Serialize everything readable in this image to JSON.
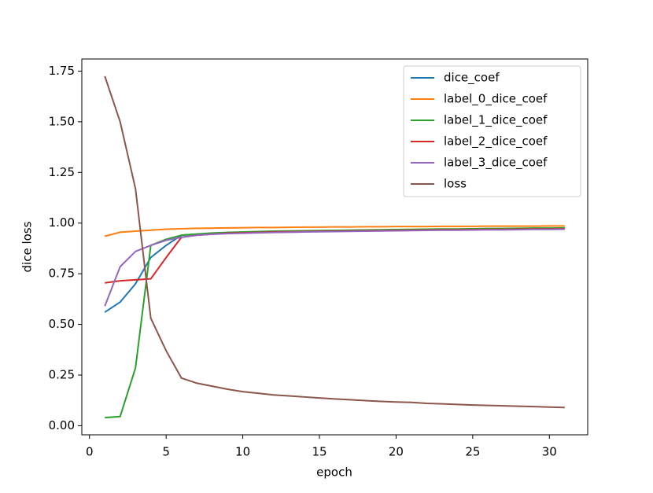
{
  "chart_data": {
    "type": "line",
    "xlabel": "epoch",
    "ylabel": "dice loss",
    "x": [
      1,
      2,
      3,
      4,
      5,
      6,
      7,
      8,
      9,
      10,
      11,
      12,
      13,
      14,
      15,
      16,
      17,
      18,
      19,
      20,
      21,
      22,
      23,
      24,
      25,
      26,
      27,
      28,
      29,
      30,
      31
    ],
    "series": [
      {
        "name": "dice_coef",
        "color": "#1f77b4",
        "values": [
          0.56,
          0.61,
          0.7,
          0.83,
          0.89,
          0.94,
          0.945,
          0.95,
          0.953,
          0.955,
          0.957,
          0.959,
          0.96,
          0.961,
          0.962,
          0.963,
          0.964,
          0.965,
          0.966,
          0.967,
          0.968,
          0.969,
          0.97,
          0.97,
          0.971,
          0.972,
          0.972,
          0.973,
          0.974,
          0.974,
          0.975
        ]
      },
      {
        "name": "label_0_dice_coef",
        "color": "#ff7f0e",
        "values": [
          0.935,
          0.955,
          0.96,
          0.965,
          0.97,
          0.972,
          0.974,
          0.975,
          0.976,
          0.977,
          0.978,
          0.978,
          0.979,
          0.98,
          0.98,
          0.981,
          0.981,
          0.982,
          0.982,
          0.983,
          0.983,
          0.983,
          0.984,
          0.984,
          0.984,
          0.985,
          0.985,
          0.985,
          0.985,
          0.986,
          0.986
        ]
      },
      {
        "name": "label_1_dice_coef",
        "color": "#2ca02c",
        "values": [
          0.04,
          0.045,
          0.285,
          0.89,
          0.92,
          0.94,
          0.946,
          0.951,
          0.954,
          0.956,
          0.958,
          0.96,
          0.961,
          0.962,
          0.963,
          0.964,
          0.965,
          0.966,
          0.967,
          0.968,
          0.969,
          0.97,
          0.971,
          0.971,
          0.972,
          0.973,
          0.973,
          0.974,
          0.975,
          0.975,
          0.976
        ]
      },
      {
        "name": "label_2_dice_coef",
        "color": "#d62728",
        "values": [
          0.705,
          0.715,
          0.72,
          0.725,
          0.83,
          0.93,
          0.94,
          0.945,
          0.95,
          0.952,
          0.954,
          0.956,
          0.957,
          0.958,
          0.959,
          0.96,
          0.961,
          0.962,
          0.963,
          0.964,
          0.965,
          0.966,
          0.967,
          0.967,
          0.968,
          0.969,
          0.969,
          0.97,
          0.971,
          0.971,
          0.972
        ]
      },
      {
        "name": "label_3_dice_coef",
        "color": "#9467bd",
        "values": [
          0.59,
          0.785,
          0.86,
          0.89,
          0.915,
          0.93,
          0.94,
          0.945,
          0.948,
          0.95,
          0.952,
          0.954,
          0.955,
          0.956,
          0.957,
          0.958,
          0.959,
          0.96,
          0.961,
          0.962,
          0.963,
          0.964,
          0.965,
          0.965,
          0.966,
          0.967,
          0.967,
          0.968,
          0.969,
          0.969,
          0.97
        ]
      },
      {
        "name": "loss",
        "color": "#8c564b",
        "values": [
          1.725,
          1.5,
          1.17,
          0.53,
          0.37,
          0.235,
          0.21,
          0.195,
          0.18,
          0.168,
          0.16,
          0.152,
          0.147,
          0.142,
          0.137,
          0.132,
          0.128,
          0.124,
          0.12,
          0.117,
          0.115,
          0.11,
          0.108,
          0.105,
          0.102,
          0.1,
          0.098,
          0.096,
          0.094,
          0.092,
          0.09
        ]
      }
    ],
    "xlim": [
      -0.5,
      32.5
    ],
    "xticks": [
      0,
      5,
      10,
      15,
      20,
      25,
      30
    ],
    "ylim": [
      -0.045,
      1.81
    ],
    "yticks": [
      {
        "value": 0,
        "label": "0.00"
      },
      0.25,
      {
        "value": 0.5,
        "label": "0.50"
      },
      0.75,
      {
        "value": 1,
        "label": "1.00"
      },
      1.25,
      {
        "value": 1.5,
        "label": "1.50"
      },
      1.75
    ],
    "legend": "upper right"
  }
}
